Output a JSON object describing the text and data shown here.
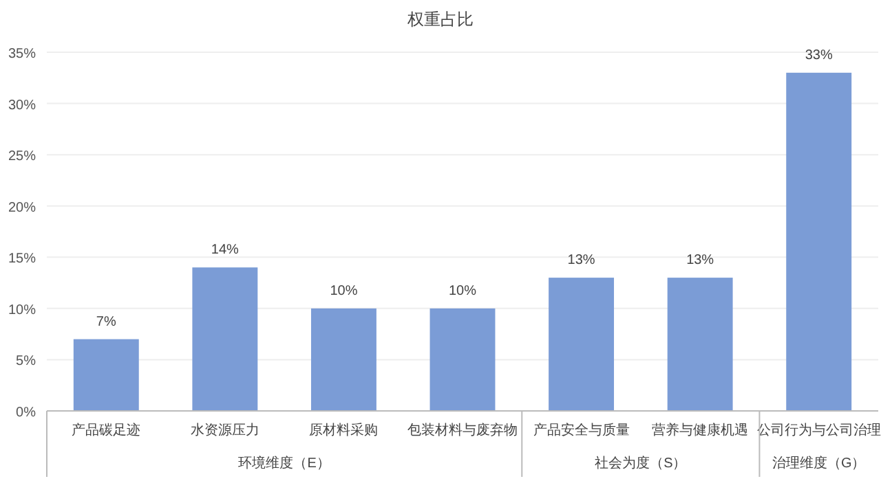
{
  "chart_data": {
    "type": "bar",
    "title": "权重占比",
    "categories": [
      "产品碳足迹",
      "水资源压力",
      "原材料采购",
      "包装材料与废弃物",
      "产品安全与质量",
      "营养与健康机遇",
      "公司行为与公司治理"
    ],
    "values": [
      7,
      14,
      10,
      10,
      13,
      13,
      33
    ],
    "value_labels": [
      "7%",
      "14%",
      "10%",
      "10%",
      "13%",
      "13%",
      "33%"
    ],
    "color": "#7b9cd6",
    "ylim": [
      0,
      35
    ],
    "yticks": [
      {
        "value": 0,
        "label": "0%"
      },
      {
        "value": 5,
        "label": "5%"
      },
      {
        "value": 10,
        "label": "10%"
      },
      {
        "value": 15,
        "label": "15%"
      },
      {
        "value": 20,
        "label": "20%"
      },
      {
        "value": 25,
        "label": "25%"
      },
      {
        "value": 30,
        "label": "30%"
      },
      {
        "value": 35,
        "label": "35%"
      }
    ],
    "grid": "y",
    "annotations": [
      "环境维度（E）",
      "社会为度（S）",
      "治理维度（G）"
    ]
  }
}
